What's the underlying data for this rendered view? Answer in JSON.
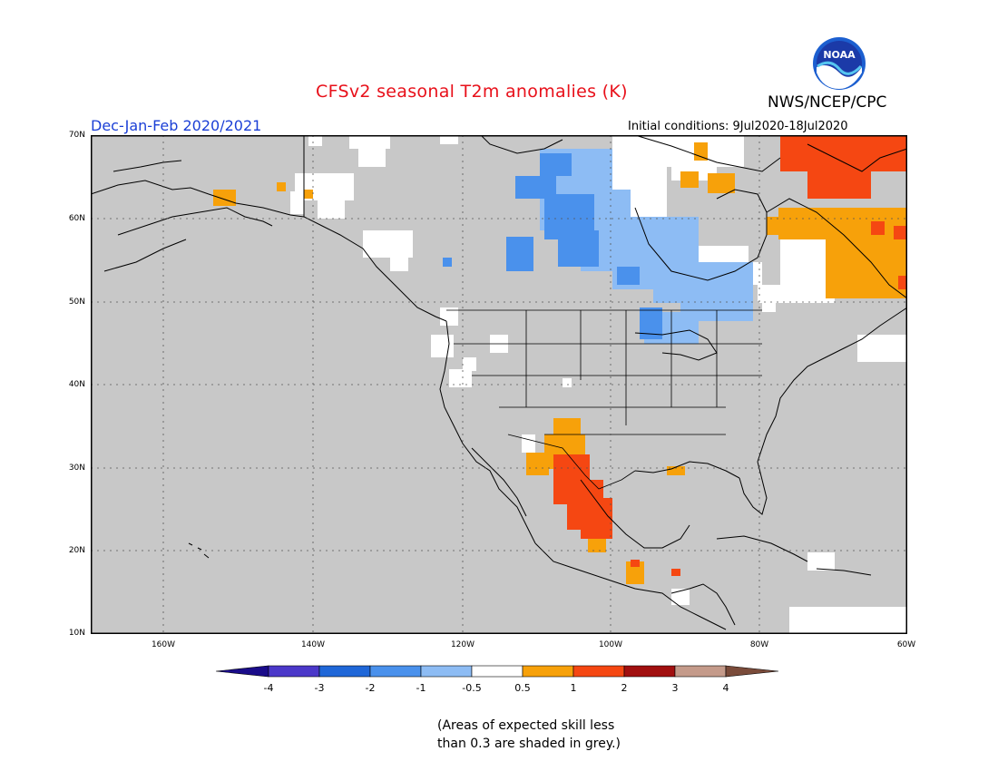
{
  "title": "CFSv2 seasonal T2m anomalies (K)",
  "organization": "NWS/NCEP/CPC",
  "logo_text": "NOAA",
  "season": "Dec-Jan-Feb 2020/2021",
  "initial_conditions": "Initial conditions: 9Jul2020-18Jul2020",
  "lat_labels": [
    "70N",
    "60N",
    "50N",
    "40N",
    "30N",
    "20N",
    "10N"
  ],
  "lon_labels": [
    "160W",
    "140W",
    "120W",
    "100W",
    "80W",
    "60W"
  ],
  "colorbar": {
    "labels": [
      "-4",
      "-3",
      "-2",
      "-1",
      "-0.5",
      "0.5",
      "1",
      "2",
      "3",
      "4"
    ],
    "colors": [
      "#1a0c8a",
      "#4b38c9",
      "#1f67d8",
      "#4a91ec",
      "#8dbcf4",
      "#ffffff",
      "#f7a10a",
      "#f54712",
      "#a10f0f",
      "#c49a8a",
      "#7a4b3a"
    ]
  },
  "colors": {
    "skill_grey": "#c8c8c8",
    "title_red": "#e8101a",
    "season_blue": "#1b3fd6"
  },
  "note_line1": "(Areas of expected skill less",
  "note_line2": "than 0.3 are shaded in grey.)"
}
